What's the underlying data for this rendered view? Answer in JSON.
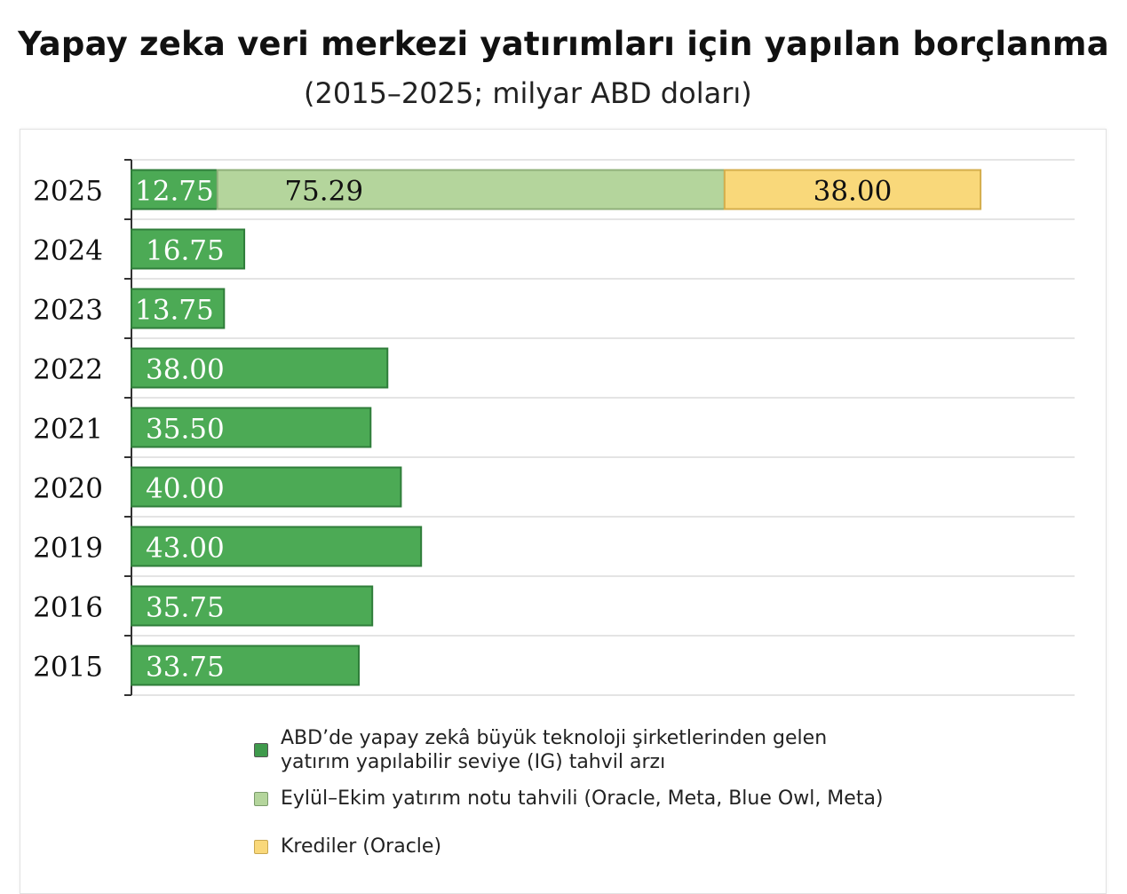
{
  "chart_data": {
    "type": "bar",
    "orientation": "horizontal",
    "stacked": true,
    "title": "Yapay zeka veri merkezi yatırımları için yapılan borçlanma",
    "subtitle": "(2015–2025; milyar ABD doları)",
    "categories": [
      "2025",
      "2024",
      "2023",
      "2022",
      "2021",
      "2020",
      "2019",
      "2016",
      "2015"
    ],
    "series": [
      {
        "name": "ABD’de yapay zekâ büyük teknoloji şirketlerinden gelen yatırım yapılabilir seviye (IG) tahvil arzı",
        "name_lines": [
          "ABD’de yapay zekâ büyük teknoloji şirketlerinden gelen",
          "yatırım yapılabilir seviye (IG) tahvil arzı"
        ],
        "color": "#4caa55",
        "values": [
          12.75,
          16.75,
          13.75,
          38.0,
          35.5,
          40.0,
          43.0,
          35.75,
          33.75
        ],
        "labels": [
          "12.75",
          "16.75",
          "13.75",
          "38.00",
          "35.50",
          "40.00",
          "43.00",
          "35.75",
          "33.75"
        ],
        "label_color": "#ffffff"
      },
      {
        "name": "Eylül–Ekim yatırım notu tahvili (Oracle, Meta, Blue Owl, Meta)",
        "color": "#b4d59c",
        "values": [
          75.29,
          0,
          0,
          0,
          0,
          0,
          0,
          0,
          0
        ],
        "labels": [
          "75.29",
          "",
          "",
          "",
          "",
          "",
          "",
          "",
          ""
        ],
        "label_color": "#111111"
      },
      {
        "name": "Krediler (Oracle)",
        "color": "#f9d87a",
        "values": [
          38.0,
          0,
          0,
          0,
          0,
          0,
          0,
          0,
          0
        ],
        "labels": [
          "38.00",
          "",
          "",
          "",
          "",
          "",
          "",
          "",
          ""
        ],
        "label_color": "#111111"
      }
    ],
    "xlim": [
      0,
      140
    ],
    "grid": true,
    "legend_position": "bottom"
  }
}
